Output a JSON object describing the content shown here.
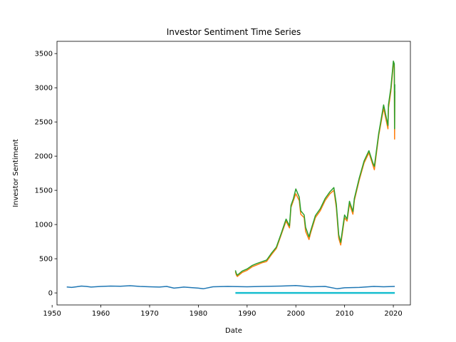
{
  "chart_data": {
    "type": "line",
    "title": "Investor Sentiment Time Series",
    "xlabel": "Date",
    "ylabel": "Investor Sentiment",
    "xlim": [
      1951.0,
      2023.5
    ],
    "ylim": [
      -176,
      3679
    ],
    "x_ticks": [
      1950,
      1960,
      1970,
      1980,
      1990,
      2000,
      2010,
      2020
    ],
    "x_tick_labels": [
      "1950",
      "1960",
      "1970",
      "1980",
      "1990",
      "2000",
      "2010",
      "2020"
    ],
    "y_ticks": [
      0,
      500,
      1000,
      1500,
      2000,
      2500,
      3000,
      3500
    ],
    "y_tick_labels": [
      "0",
      "500",
      "1000",
      "1500",
      "2000",
      "2500",
      "3000",
      "3500"
    ],
    "grid": false,
    "colors": {
      "series_1": "#1f77b4",
      "series_2": "#ff7f0e",
      "series_3": "#2ca02c",
      "series_4": "#17becf"
    },
    "series": [
      {
        "color_key": "series_1",
        "x": [
          1953.0,
          1954.0,
          1955.0,
          1956.0,
          1957.0,
          1958.0,
          1960.0,
          1962.0,
          1964.0,
          1966.0,
          1968.0,
          1970.0,
          1972.0,
          1973.5,
          1975.0,
          1977.0,
          1980.0,
          1981.0,
          1983.0,
          1986.0,
          1990.0,
          1993.0,
          1997.0,
          2000.0,
          2003.0,
          2006.0,
          2008.5,
          2010.0,
          2013.0,
          2016.0,
          2018.0,
          2020.3
        ],
        "y": [
          88,
          80,
          90,
          100,
          95,
          85,
          95,
          100,
          98,
          105,
          95,
          90,
          85,
          95,
          70,
          85,
          70,
          60,
          90,
          95,
          90,
          95,
          100,
          108,
          90,
          95,
          60,
          75,
          80,
          95,
          90,
          95
        ]
      },
      {
        "color_key": "series_2",
        "x": [
          1987.6,
          1987.8,
          1988.0,
          1989.0,
          1990.0,
          1991.0,
          1992.0,
          1993.0,
          1994.0,
          1995.0,
          1996.0,
          1997.0,
          1998.0,
          1998.7,
          1999.0,
          1999.5,
          2000.0,
          2000.7,
          2001.0,
          2001.7,
          2002.0,
          2002.7,
          2003.0,
          2004.0,
          2005.0,
          2006.0,
          2007.0,
          2007.8,
          2008.3,
          2008.8,
          2009.2,
          2010.0,
          2010.5,
          2011.0,
          2011.7,
          2012.0,
          2013.0,
          2014.0,
          2015.0,
          2015.8,
          2016.1,
          2017.0,
          2018.0,
          2018.9,
          2019.0,
          2019.5,
          2020.0,
          2020.2,
          2020.25,
          2020.3
        ],
        "y": [
          310,
          260,
          240,
          300,
          330,
          380,
          410,
          440,
          460,
          560,
          650,
          850,
          1050,
          950,
          1250,
          1350,
          1450,
          1350,
          1150,
          1100,
          900,
          780,
          870,
          1100,
          1200,
          1350,
          1450,
          1500,
          1250,
          800,
          700,
          1100,
          1050,
          1300,
          1150,
          1350,
          1650,
          1900,
          2050,
          1870,
          1800,
          2300,
          2700,
          2400,
          2700,
          2950,
          3350,
          3300,
          2250,
          2950
        ]
      },
      {
        "color_key": "series_3",
        "x": [
          1987.6,
          1987.8,
          1988.0,
          1989.0,
          1990.0,
          1991.0,
          1992.0,
          1993.0,
          1994.0,
          1995.0,
          1996.0,
          1997.0,
          1998.0,
          1998.7,
          1999.0,
          1999.5,
          2000.0,
          2000.7,
          2001.0,
          2001.7,
          2002.0,
          2002.7,
          2003.0,
          2004.0,
          2005.0,
          2006.0,
          2007.0,
          2007.8,
          2008.3,
          2008.8,
          2009.2,
          2010.0,
          2010.5,
          2011.0,
          2011.7,
          2012.0,
          2013.0,
          2014.0,
          2015.0,
          2015.8,
          2016.1,
          2017.0,
          2018.0,
          2018.9,
          2019.0,
          2019.5,
          2020.0,
          2020.2,
          2020.25,
          2020.3
        ],
        "y": [
          330,
          280,
          260,
          320,
          350,
          400,
          430,
          455,
          480,
          580,
          670,
          870,
          1080,
          980,
          1280,
          1380,
          1520,
          1400,
          1200,
          1140,
          960,
          820,
          900,
          1130,
          1230,
          1380,
          1480,
          1540,
          1300,
          850,
          740,
          1140,
          1080,
          1340,
          1190,
          1380,
          1680,
          1930,
          2080,
          1900,
          1850,
          2330,
          2750,
          2450,
          2750,
          3000,
          3390,
          3350,
          2400,
          3050
        ]
      },
      {
        "color_key": "series_4",
        "x": [
          1987.6,
          2020.3
        ],
        "y": [
          0,
          0
        ]
      }
    ]
  }
}
